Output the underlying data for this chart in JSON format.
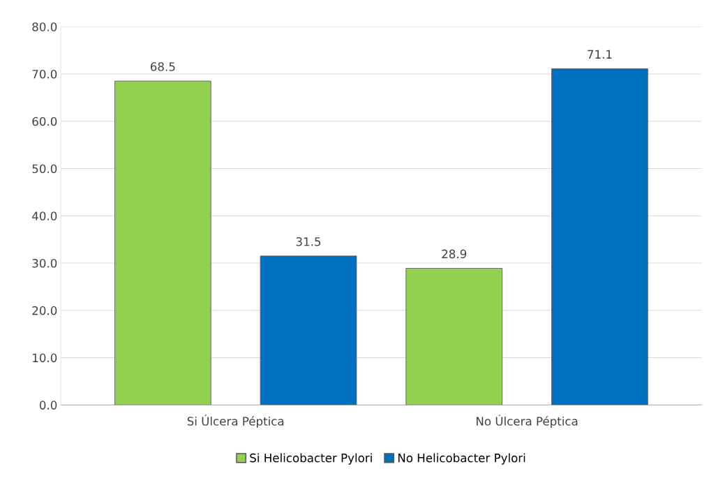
{
  "chart_data": {
    "type": "bar",
    "categories": [
      "Si Úlcera Péptica",
      "No Úlcera Péptica"
    ],
    "series": [
      {
        "name": "Si Helicobacter Pylori",
        "color": "#92d050",
        "values": [
          68.5,
          28.9
        ]
      },
      {
        "name": "No Helicobacter Pylori",
        "color": "#0070c0",
        "values": [
          31.5,
          71.1
        ]
      }
    ],
    "ylim": [
      0,
      80
    ],
    "yticks": [
      {
        "value": 0,
        "label": "0.0"
      },
      {
        "value": 10,
        "label": "10.0"
      },
      {
        "value": 20,
        "label": "20.0"
      },
      {
        "value": 30,
        "label": "30.0"
      },
      {
        "value": 40,
        "label": "40.0"
      },
      {
        "value": 50,
        "label": "50.0"
      },
      {
        "value": 60,
        "label": "60.0"
      },
      {
        "value": 70,
        "label": "70.0"
      },
      {
        "value": 80,
        "label": "80.0"
      }
    ],
    "grid": "y",
    "legend": "bottom",
    "data_labels": true
  }
}
